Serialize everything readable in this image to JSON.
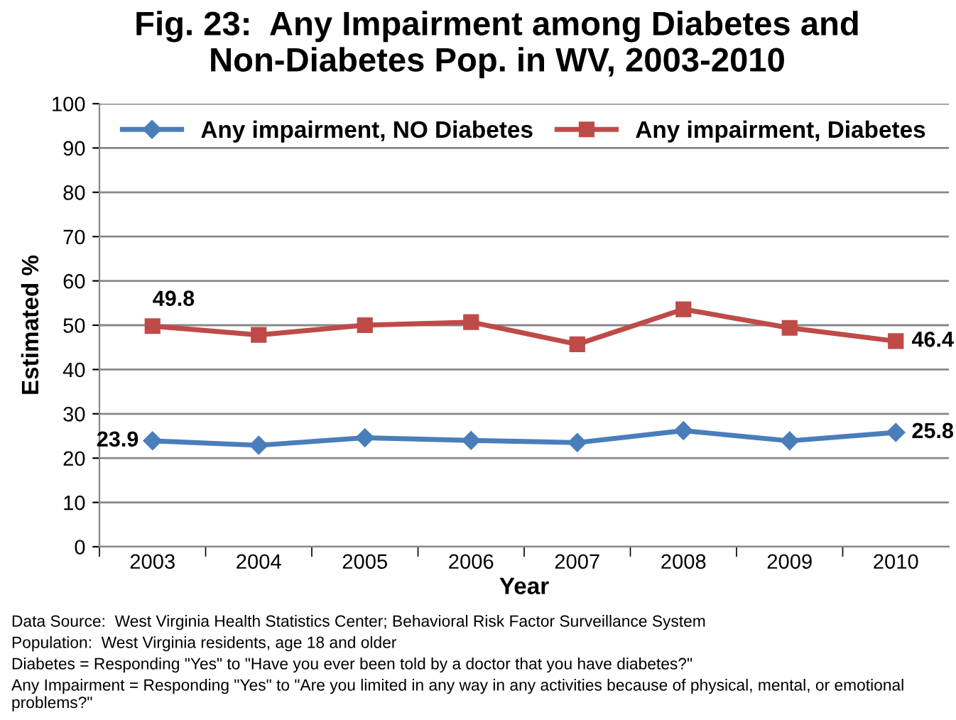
{
  "chart_data": {
    "type": "line",
    "title": "Fig. 23:  Any Impairment among Diabetes and Non-Diabetes Pop. in WV, 2003-2010",
    "xlabel": "Year",
    "ylabel": "Estimated %",
    "categories": [
      "2003",
      "2004",
      "2005",
      "2006",
      "2007",
      "2008",
      "2009",
      "2010"
    ],
    "series": [
      {
        "name": "Any impairment, NO Diabetes",
        "color": "#4a7ebb",
        "marker": "diamond",
        "values": [
          23.9,
          22.9,
          24.6,
          24.0,
          23.5,
          26.2,
          23.9,
          25.8
        ],
        "value_labels": [
          "23.9",
          null,
          null,
          null,
          null,
          null,
          null,
          "25.8"
        ]
      },
      {
        "name": "Any impairment, Diabetes",
        "color": "#be4b48",
        "marker": "square",
        "values": [
          49.8,
          47.8,
          50.0,
          50.7,
          45.7,
          53.6,
          49.4,
          46.4
        ],
        "value_labels": [
          "49.8",
          null,
          null,
          null,
          null,
          null,
          null,
          "46.4"
        ]
      }
    ],
    "ylim": [
      0,
      100
    ],
    "yticks": [
      0,
      10,
      20,
      30,
      40,
      50,
      60,
      70,
      80,
      90,
      100
    ],
    "grid": "y",
    "legend": "top",
    "line_style": "solid",
    "annotations": [
      "Data Source:  West Virginia Health Statistics Center; Behavioral Risk Factor Surveillance System",
      "Population:  West Virginia residents, age 18 and older",
      "Diabetes = Responding \"Yes\" to \"Have you ever been told by a doctor that you have diabetes?\"",
      "Any Impairment = Responding \"Yes\" to \"Are you limited in any way in any activities because of physical, mental, or emotional problems?\""
    ]
  }
}
